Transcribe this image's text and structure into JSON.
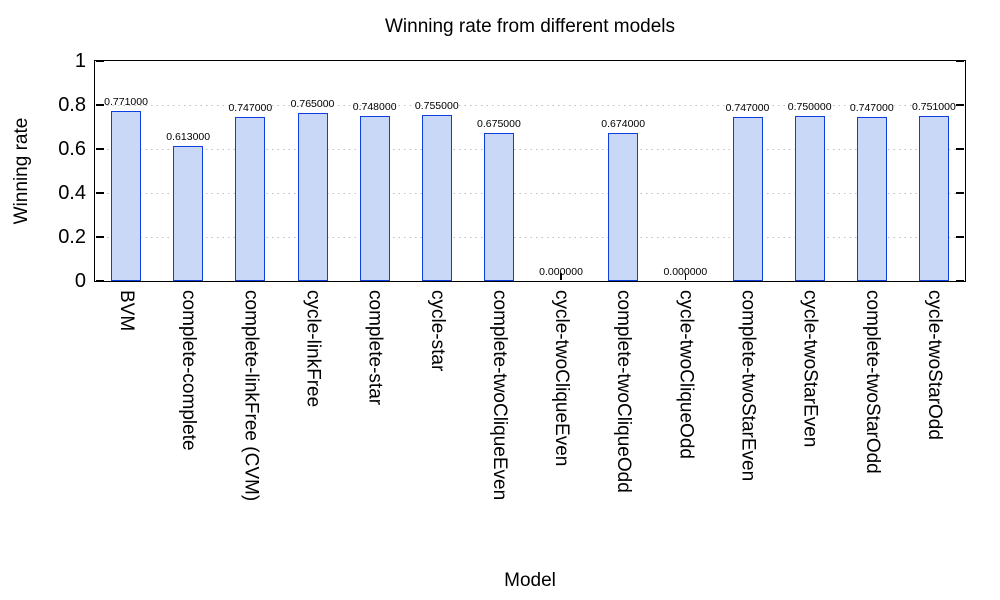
{
  "chart_data": {
    "type": "bar",
    "title": "Winning rate from different models",
    "xlabel": "Model",
    "ylabel": "Winning rate",
    "categories": [
      "BVM",
      "complete-complete",
      "complete-linkFree (CVM)",
      "cycle-linkFree",
      "complete-star",
      "cycle-star",
      "complete-twoCliqueEven",
      "cycle-twoCliqueEven",
      "complete-twoCliqueOdd",
      "cycle-twoCliqueOdd",
      "complete-twoStarEven",
      "cycle-twoStarEven",
      "complete-twoStarOdd",
      "cycle-twoStarOdd"
    ],
    "values": [
      0.771,
      0.613,
      0.747,
      0.765,
      0.748,
      0.755,
      0.675,
      0.0,
      0.674,
      0.0,
      0.747,
      0.75,
      0.747,
      0.751
    ],
    "value_labels": [
      "0.771000",
      "0.613000",
      "0.747000",
      "0.765000",
      "0.748000",
      "0.755000",
      "0.675000",
      "0.000000",
      "0.674000",
      "0.000000",
      "0.747000",
      "0.750000",
      "0.747000",
      "0.751000"
    ],
    "ylim": [
      0,
      1
    ],
    "yticks": [
      0,
      0.2,
      0.4,
      0.6,
      0.8,
      1
    ],
    "ytick_labels": [
      "0",
      "0.2",
      "0.4",
      "0.6",
      "0.8",
      "1"
    ],
    "grid": "horizontal-dotted",
    "legend": "none",
    "colors": {
      "bar_fill": "#cad8f7",
      "bar_border": "#0d3fe0",
      "grid_color": "#c2c2c2",
      "frame_color": "#000000",
      "background": "#ffffff",
      "text": "#000000"
    }
  }
}
